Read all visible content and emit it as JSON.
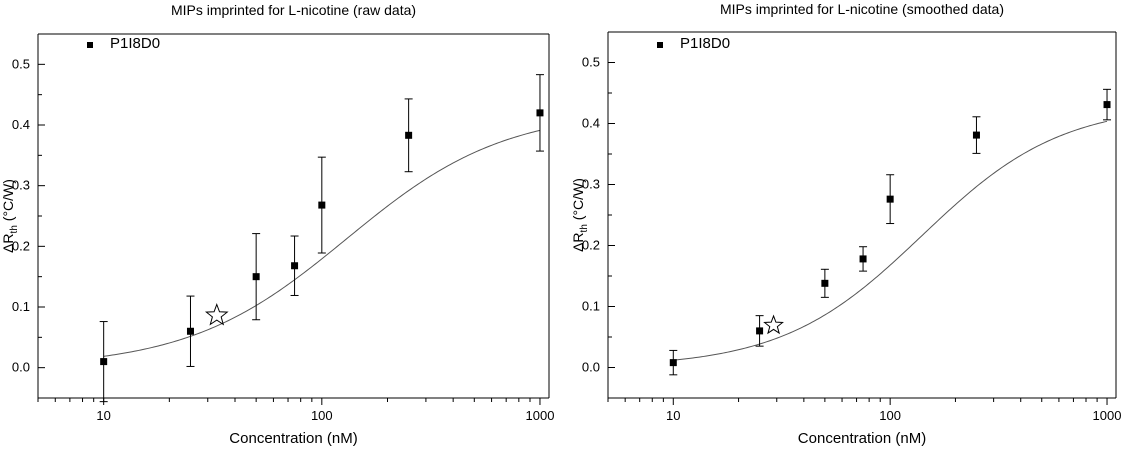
{
  "chart_data": [
    {
      "type": "scatter",
      "title": "MIPs imprinted for L-nicotine (raw data)",
      "xlabel": "Concentration (nM)",
      "ylabel": {
        "delta": "Δ",
        "main": "R",
        "sub": "th",
        "unit": " (°C/W)"
      },
      "x_scale": "log",
      "xlim": [
        5,
        1100
      ],
      "ylim": [
        -0.05,
        0.55
      ],
      "x_ticks": [
        10,
        100,
        1000
      ],
      "y_ticks": [
        0.0,
        0.1,
        0.2,
        0.3,
        0.4,
        0.5
      ],
      "x_tick_labels": [
        "10",
        "100",
        "1000"
      ],
      "y_tick_labels": [
        "0.0",
        "0.1",
        "0.2",
        "0.3",
        "0.4",
        "0.5"
      ],
      "legend": {
        "label": "P1I8D0",
        "position": "top-left"
      },
      "series": [
        {
          "name": "P1I8D0",
          "x": [
            10,
            25,
            50,
            75,
            100,
            250,
            1000
          ],
          "y": [
            0.01,
            0.06,
            0.15,
            0.168,
            0.268,
            0.383,
            0.42
          ],
          "error": [
            0.066,
            0.058,
            0.071,
            0.049,
            0.079,
            0.06,
            0.063
          ]
        }
      ],
      "fit_curve": {
        "bottom": 0.0,
        "top": 0.425,
        "x0": 130,
        "hill": 1.2
      },
      "marker": {
        "shape": "star",
        "x": 33,
        "y": 0.086
      }
    },
    {
      "type": "scatter",
      "title": "MIPs imprinted for L-nicotine (smoothed data)",
      "xlabel": "Concentration (nM)",
      "ylabel": {
        "delta": "Δ",
        "main": "R",
        "sub": "th",
        "unit": " (°C/W)"
      },
      "x_scale": "log",
      "xlim": [
        5,
        1100
      ],
      "ylim": [
        -0.05,
        0.55
      ],
      "x_ticks": [
        10,
        100,
        1000
      ],
      "y_ticks": [
        0.0,
        0.1,
        0.2,
        0.3,
        0.4,
        0.5
      ],
      "x_tick_labels": [
        "10",
        "100",
        "1000"
      ],
      "y_tick_labels": [
        "0.0",
        "0.1",
        "0.2",
        "0.3",
        "0.4",
        "0.5"
      ],
      "legend": {
        "label": "P1I8D0",
        "position": "top-left"
      },
      "series": [
        {
          "name": "P1I8D0",
          "x": [
            10,
            25,
            50,
            75,
            100,
            250,
            1000
          ],
          "y": [
            0.008,
            0.06,
            0.138,
            0.178,
            0.276,
            0.381,
            0.431
          ],
          "error": [
            0.02,
            0.025,
            0.023,
            0.02,
            0.04,
            0.03,
            0.025
          ]
        }
      ],
      "fit_curve": {
        "bottom": 0.0,
        "top": 0.432,
        "x0": 140,
        "hill": 1.35
      },
      "marker": {
        "shape": "star",
        "x": 29,
        "y": 0.069
      }
    }
  ]
}
